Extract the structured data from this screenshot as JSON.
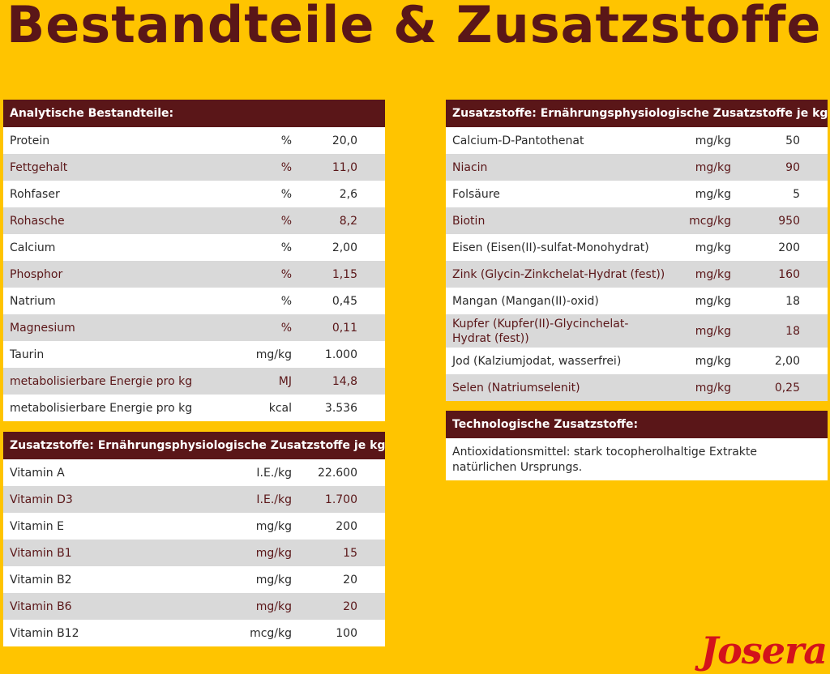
{
  "title": "Bestandteile & Zusatzstoffe",
  "logo": "Josera",
  "analytic": {
    "header": "Analytische Bestandteile:",
    "rows": [
      {
        "name": "Protein",
        "unit": "%",
        "value": "20,0"
      },
      {
        "name": "Fettgehalt",
        "unit": "%",
        "value": "11,0"
      },
      {
        "name": "Rohfaser",
        "unit": "%",
        "value": "2,6"
      },
      {
        "name": "Rohasche",
        "unit": "%",
        "value": "8,2"
      },
      {
        "name": "Calcium",
        "unit": "%",
        "value": "2,00"
      },
      {
        "name": "Phosphor",
        "unit": "%",
        "value": "1,15"
      },
      {
        "name": "Natrium",
        "unit": "%",
        "value": "0,45"
      },
      {
        "name": "Magnesium",
        "unit": "%",
        "value": "0,11"
      },
      {
        "name": "Taurin",
        "unit": "mg/kg",
        "value": "1.000"
      },
      {
        "name": "metabolisierbare Energie pro kg",
        "unit": "MJ",
        "value": "14,8"
      },
      {
        "name": "metabolisierbare Energie pro kg",
        "unit": "kcal",
        "value": "3.536"
      }
    ]
  },
  "vitamins": {
    "header": "Zusatzstoffe: Ernährungsphysiologische Zusatzstoffe je kg:",
    "rows": [
      {
        "name": "Vitamin A",
        "unit": "I.E./kg",
        "value": "22.600"
      },
      {
        "name": "Vitamin D3",
        "unit": "I.E./kg",
        "value": "1.700"
      },
      {
        "name": "Vitamin E",
        "unit": "mg/kg",
        "value": "200"
      },
      {
        "name": "Vitamin B1",
        "unit": "mg/kg",
        "value": "15"
      },
      {
        "name": "Vitamin B2",
        "unit": "mg/kg",
        "value": "20"
      },
      {
        "name": "Vitamin B6",
        "unit": "mg/kg",
        "value": "20"
      },
      {
        "name": "Vitamin B12",
        "unit": "mcg/kg",
        "value": "100"
      }
    ]
  },
  "minerals": {
    "header": "Zusatzstoffe: Ernährungsphysiologische Zusatzstoffe je kg:",
    "rows": [
      {
        "name": "Calcium-D-Pantothenat",
        "unit": "mg/kg",
        "value": "50"
      },
      {
        "name": "Niacin",
        "unit": "mg/kg",
        "value": "90"
      },
      {
        "name": "Folsäure",
        "unit": "mg/kg",
        "value": "5"
      },
      {
        "name": "Biotin",
        "unit": "mcg/kg",
        "value": "950"
      },
      {
        "name": "Eisen (Eisen(II)-sulfat-Monohydrat)",
        "unit": "mg/kg",
        "value": "200"
      },
      {
        "name": "Zink (Glycin-Zinkchelat-Hydrat (fest))",
        "unit": "mg/kg",
        "value": "160"
      },
      {
        "name": "Mangan (Mangan(II)-oxid)",
        "unit": "mg/kg",
        "value": "18"
      },
      {
        "name": "Kupfer (Kupfer(II)-Glycinchelat-Hydrat (fest))",
        "unit": "mg/kg",
        "value": "18"
      },
      {
        "name": "Jod (Kalziumjodat, wasserfrei)",
        "unit": "mg/kg",
        "value": "2,00"
      },
      {
        "name": "Selen (Natriumselenit)",
        "unit": "mg/kg",
        "value": "0,25"
      }
    ]
  },
  "technological": {
    "header": "Technologische Zusatzstoffe:",
    "text": "Antioxidationsmittel: stark tocopherolhaltige Extrakte natürlichen Ursprungs."
  }
}
